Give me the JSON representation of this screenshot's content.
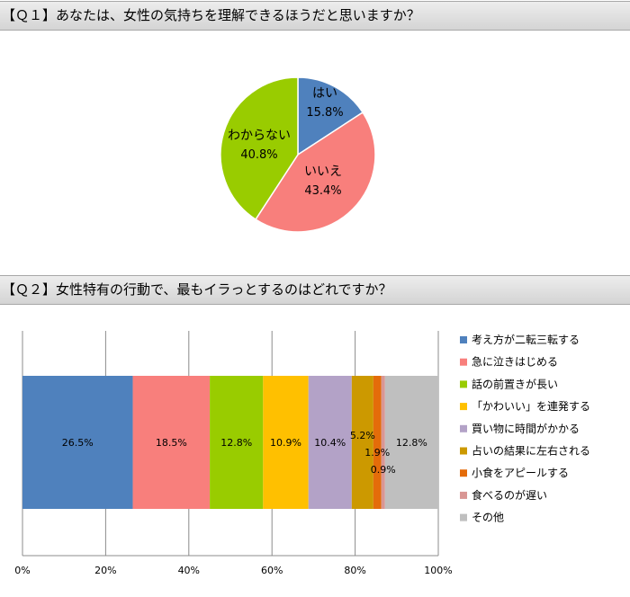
{
  "q1": {
    "heading": "【Ｑ１】あなたは、女性の気持ちを理解できるほうだと思いますか？",
    "chart_data": {
      "type": "pie",
      "slices": [
        {
          "label": "はい",
          "value": 15.8,
          "display": "15.8%",
          "color": "#4f81bd"
        },
        {
          "label": "いいえ",
          "value": 43.4,
          "display": "43.4%",
          "color": "#f87f7c"
        },
        {
          "label": "わからない",
          "value": 40.8,
          "display": "40.8%",
          "color": "#99cc00"
        }
      ]
    }
  },
  "q2": {
    "heading": "【Ｑ２】女性特有の行動で、最もイラっとするのはどれですか？",
    "chart_data": {
      "type": "bar",
      "orientation": "horizontal",
      "stacked": "percent",
      "xlim": [
        0,
        100
      ],
      "ticks": [
        "0%",
        "20%",
        "40%",
        "60%",
        "80%",
        "100%"
      ],
      "grid": true,
      "legend_position": "right",
      "series": [
        {
          "name": "考え方が二転三転する",
          "value": 26.5,
          "label": "26.5%",
          "color": "#4f81bd"
        },
        {
          "name": "急に泣きはじめる",
          "value": 18.5,
          "label": "18.5%",
          "color": "#f87f7c"
        },
        {
          "name": "話の前置きが長い",
          "value": 12.8,
          "label": "12.8%",
          "color": "#99cc00"
        },
        {
          "name": "「かわいい」を連発する",
          "value": 10.9,
          "label": "10.9%",
          "color": "#ffc000"
        },
        {
          "name": "買い物に時間がかかる",
          "value": 10.4,
          "label": "10.4%",
          "color": "#b3a2c7"
        },
        {
          "name": "占いの結果に左右される",
          "value": 5.2,
          "label": "5.2%",
          "color": "#cc9900"
        },
        {
          "name": "小食をアピールする",
          "value": 1.9,
          "label": "1.9%",
          "color": "#e46c0a"
        },
        {
          "name": "食べるのが遅い",
          "value": 0.9,
          "label": "0.9%",
          "color": "#d99694"
        },
        {
          "name": "その他",
          "value": 12.8,
          "label": "12.8%",
          "color": "#bfbfbf"
        }
      ]
    }
  }
}
